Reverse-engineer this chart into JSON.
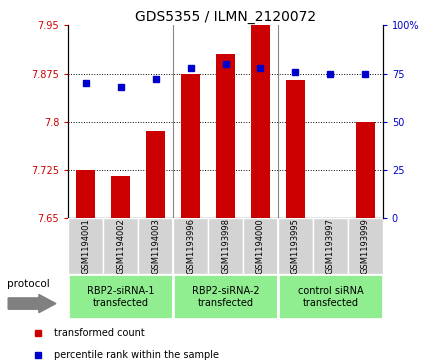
{
  "title": "GDS5355 / ILMN_2120072",
  "samples": [
    "GSM1194001",
    "GSM1194002",
    "GSM1194003",
    "GSM1193996",
    "GSM1193998",
    "GSM1194000",
    "GSM1193995",
    "GSM1193997",
    "GSM1193999"
  ],
  "red_values": [
    7.725,
    7.715,
    7.785,
    7.875,
    7.905,
    7.95,
    7.865,
    7.65,
    7.8
  ],
  "blue_values": [
    70,
    68,
    72,
    78,
    80,
    78,
    76,
    75,
    75
  ],
  "ylim_left": [
    7.65,
    7.95
  ],
  "ylim_right": [
    0,
    100
  ],
  "yticks_left": [
    7.65,
    7.725,
    7.8,
    7.875,
    7.95
  ],
  "yticks_right": [
    0,
    25,
    50,
    75,
    100
  ],
  "ytick_labels_left": [
    "7.65",
    "7.725",
    "7.8",
    "7.875",
    "7.95"
  ],
  "ytick_labels_right": [
    "0",
    "25",
    "50",
    "75",
    "100%"
  ],
  "groups": [
    {
      "label": "RBP2-siRNA-1\ntransfected",
      "start": 0,
      "end": 3,
      "color": "#90EE90"
    },
    {
      "label": "RBP2-siRNA-2\ntransfected",
      "start": 3,
      "end": 6,
      "color": "#90EE90"
    },
    {
      "label": "control siRNA\ntransfected",
      "start": 6,
      "end": 9,
      "color": "#90EE90"
    }
  ],
  "bar_color": "#cc0000",
  "dot_color": "#0000cc",
  "bar_width": 0.55,
  "bg_color": "#ffffff",
  "sample_box_color": "#d3d3d3",
  "legend_red": "transformed count",
  "legend_blue": "percentile rank within the sample",
  "protocol_label": "protocol",
  "title_fontsize": 10,
  "tick_fontsize": 7,
  "sample_fontsize": 6,
  "group_fontsize": 7,
  "legend_fontsize": 7
}
